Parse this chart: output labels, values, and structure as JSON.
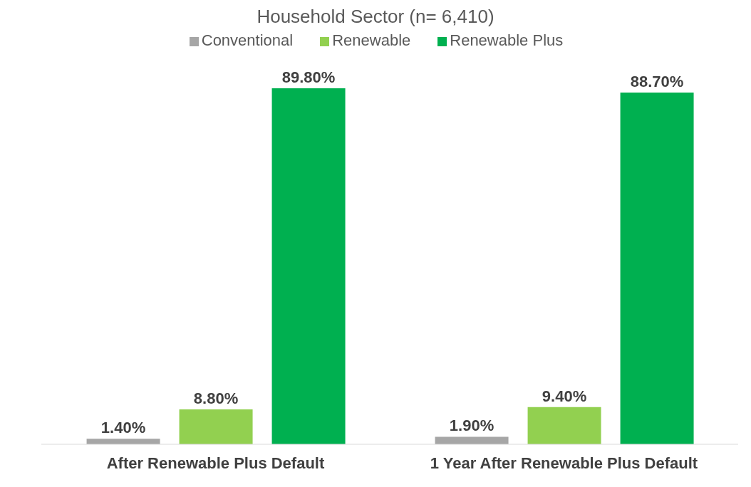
{
  "chart_data": {
    "type": "bar",
    "title": "Household Sector (n= 6,410)",
    "categories": [
      "After Renewable Plus Default",
      "1 Year After Renewable Plus Default"
    ],
    "series": [
      {
        "name": "Conventional",
        "color": "#a6a6a6",
        "values": [
          1.4,
          1.9
        ],
        "value_labels": [
          "1.40%",
          "1.90%"
        ]
      },
      {
        "name": "Renewable",
        "color": "#92d050",
        "values": [
          8.8,
          9.4
        ],
        "value_labels": [
          "8.80%",
          "9.40%"
        ]
      },
      {
        "name": "Renewable Plus",
        "color": "#00b050",
        "values": [
          89.8,
          88.7
        ],
        "value_labels": [
          "89.80%",
          "88.70%"
        ]
      }
    ],
    "legend": "top",
    "grid": false
  }
}
